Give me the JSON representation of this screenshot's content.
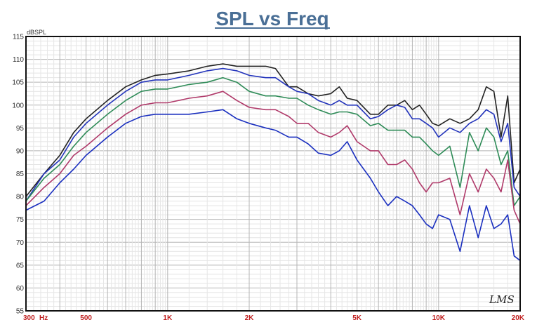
{
  "chart_data": {
    "type": "line",
    "title": "SPL vs Freq",
    "ylabel": "dBSPL",
    "x_scale": "log",
    "xlim": [
      300,
      20000
    ],
    "ylim": [
      55,
      115
    ],
    "y_ticks": [
      115,
      110,
      105,
      100,
      95,
      90,
      85,
      80,
      75,
      70,
      65,
      60,
      55
    ],
    "x_ticks": [
      {
        "value": 300,
        "label": "300"
      },
      {
        "value": 500,
        "label": "500"
      },
      {
        "value": 1000,
        "label": "1K"
      },
      {
        "value": 2000,
        "label": "2K"
      },
      {
        "value": 5000,
        "label": "5K"
      },
      {
        "value": 10000,
        "label": "10K"
      },
      {
        "value": 20000,
        "label": "20K"
      }
    ],
    "x_unit_label": "Hz",
    "grid": true,
    "logo_text": "LMS",
    "series": [
      {
        "color": "#222222",
        "points": [
          [
            300,
            80
          ],
          [
            350,
            85
          ],
          [
            400,
            89
          ],
          [
            450,
            94
          ],
          [
            500,
            97
          ],
          [
            600,
            101
          ],
          [
            700,
            104
          ],
          [
            800,
            105.5
          ],
          [
            900,
            106.5
          ],
          [
            1000,
            106.8
          ],
          [
            1200,
            107.5
          ],
          [
            1400,
            108.5
          ],
          [
            1600,
            109
          ],
          [
            1800,
            108.5
          ],
          [
            2000,
            108.5
          ],
          [
            2300,
            108.5
          ],
          [
            2500,
            108
          ],
          [
            2800,
            104
          ],
          [
            3000,
            104
          ],
          [
            3300,
            102.5
          ],
          [
            3600,
            102
          ],
          [
            4000,
            102.5
          ],
          [
            4300,
            104
          ],
          [
            4600,
            101.5
          ],
          [
            5000,
            101
          ],
          [
            5600,
            98
          ],
          [
            6000,
            98
          ],
          [
            6500,
            100
          ],
          [
            7000,
            100
          ],
          [
            7500,
            101
          ],
          [
            8000,
            99
          ],
          [
            8500,
            100
          ],
          [
            9000,
            98
          ],
          [
            9500,
            96
          ],
          [
            10000,
            95.5
          ],
          [
            11000,
            97
          ],
          [
            12000,
            96
          ],
          [
            13000,
            97
          ],
          [
            14000,
            99
          ],
          [
            15000,
            104
          ],
          [
            16000,
            103
          ],
          [
            17000,
            93
          ],
          [
            18000,
            102
          ],
          [
            19000,
            83
          ],
          [
            20000,
            86
          ]
        ]
      },
      {
        "color": "#2233bb",
        "points": [
          [
            300,
            79
          ],
          [
            350,
            85
          ],
          [
            400,
            88
          ],
          [
            450,
            93
          ],
          [
            500,
            96
          ],
          [
            600,
            100
          ],
          [
            700,
            103
          ],
          [
            800,
            105
          ],
          [
            900,
            105.5
          ],
          [
            1000,
            105.5
          ],
          [
            1200,
            106.5
          ],
          [
            1400,
            107.5
          ],
          [
            1600,
            108
          ],
          [
            1800,
            107.5
          ],
          [
            2000,
            106.5
          ],
          [
            2300,
            106
          ],
          [
            2500,
            106
          ],
          [
            2800,
            104
          ],
          [
            3000,
            103
          ],
          [
            3300,
            102.5
          ],
          [
            3600,
            101
          ],
          [
            4000,
            100
          ],
          [
            4300,
            101
          ],
          [
            4600,
            100
          ],
          [
            5000,
            100
          ],
          [
            5600,
            97
          ],
          [
            6000,
            97.5
          ],
          [
            6500,
            99
          ],
          [
            7000,
            100
          ],
          [
            7500,
            99.5
          ],
          [
            8000,
            97
          ],
          [
            8500,
            97
          ],
          [
            9000,
            96
          ],
          [
            9500,
            95
          ],
          [
            10000,
            93
          ],
          [
            11000,
            95
          ],
          [
            12000,
            94
          ],
          [
            13000,
            96
          ],
          [
            14000,
            97
          ],
          [
            15000,
            99
          ],
          [
            16000,
            98
          ],
          [
            17000,
            92
          ],
          [
            18000,
            96
          ],
          [
            19000,
            82
          ],
          [
            20000,
            80
          ]
        ]
      },
      {
        "color": "#2e8b57",
        "points": [
          [
            300,
            79
          ],
          [
            350,
            84
          ],
          [
            400,
            87
          ],
          [
            450,
            91
          ],
          [
            500,
            94
          ],
          [
            600,
            98
          ],
          [
            700,
            101
          ],
          [
            800,
            103
          ],
          [
            900,
            103.5
          ],
          [
            1000,
            103.5
          ],
          [
            1200,
            104.5
          ],
          [
            1400,
            105
          ],
          [
            1600,
            106
          ],
          [
            1800,
            105
          ],
          [
            2000,
            103
          ],
          [
            2300,
            102
          ],
          [
            2500,
            102
          ],
          [
            2800,
            101.5
          ],
          [
            3000,
            101.5
          ],
          [
            3300,
            100
          ],
          [
            3600,
            99
          ],
          [
            4000,
            98
          ],
          [
            4300,
            98.5
          ],
          [
            4600,
            98.5
          ],
          [
            5000,
            98
          ],
          [
            5600,
            95.5
          ],
          [
            6000,
            96
          ],
          [
            6500,
            94.5
          ],
          [
            7000,
            94.5
          ],
          [
            7500,
            94.5
          ],
          [
            8000,
            93
          ],
          [
            8500,
            93
          ],
          [
            9000,
            91.5
          ],
          [
            9500,
            90
          ],
          [
            10000,
            89
          ],
          [
            11000,
            91
          ],
          [
            12000,
            82
          ],
          [
            13000,
            94
          ],
          [
            14000,
            90
          ],
          [
            15000,
            95
          ],
          [
            16000,
            93
          ],
          [
            17000,
            87
          ],
          [
            18000,
            90
          ],
          [
            19000,
            78
          ],
          [
            20000,
            80
          ]
        ]
      },
      {
        "color": "#b03a6a",
        "points": [
          [
            300,
            78
          ],
          [
            350,
            82
          ],
          [
            400,
            85
          ],
          [
            450,
            89
          ],
          [
            500,
            91
          ],
          [
            600,
            95
          ],
          [
            700,
            98
          ],
          [
            800,
            100
          ],
          [
            900,
            100.5
          ],
          [
            1000,
            100.5
          ],
          [
            1200,
            101.5
          ],
          [
            1400,
            102
          ],
          [
            1600,
            103
          ],
          [
            1800,
            101
          ],
          [
            2000,
            99.5
          ],
          [
            2300,
            99
          ],
          [
            2500,
            99
          ],
          [
            2800,
            97.5
          ],
          [
            3000,
            96
          ],
          [
            3300,
            96
          ],
          [
            3600,
            94
          ],
          [
            4000,
            93
          ],
          [
            4300,
            94
          ],
          [
            4600,
            95.5
          ],
          [
            5000,
            92
          ],
          [
            5600,
            90
          ],
          [
            6000,
            90
          ],
          [
            6500,
            87
          ],
          [
            7000,
            87
          ],
          [
            7500,
            88
          ],
          [
            8000,
            86
          ],
          [
            8500,
            83
          ],
          [
            9000,
            81
          ],
          [
            9500,
            83
          ],
          [
            10000,
            83
          ],
          [
            11000,
            84
          ],
          [
            12000,
            76
          ],
          [
            13000,
            85
          ],
          [
            14000,
            81
          ],
          [
            15000,
            86
          ],
          [
            16000,
            84
          ],
          [
            17000,
            81
          ],
          [
            18000,
            88
          ],
          [
            19000,
            77
          ],
          [
            20000,
            74
          ]
        ]
      },
      {
        "color": "#1a2fbf",
        "points": [
          [
            300,
            77
          ],
          [
            350,
            79
          ],
          [
            400,
            83
          ],
          [
            450,
            86
          ],
          [
            500,
            89
          ],
          [
            600,
            93
          ],
          [
            700,
            96
          ],
          [
            800,
            97.5
          ],
          [
            900,
            98
          ],
          [
            1000,
            98
          ],
          [
            1200,
            98
          ],
          [
            1400,
            98.5
          ],
          [
            1600,
            99
          ],
          [
            1800,
            97
          ],
          [
            2000,
            96
          ],
          [
            2300,
            95
          ],
          [
            2500,
            94.5
          ],
          [
            2800,
            93
          ],
          [
            3000,
            93
          ],
          [
            3300,
            91.5
          ],
          [
            3600,
            89.5
          ],
          [
            4000,
            89
          ],
          [
            4300,
            90
          ],
          [
            4600,
            92
          ],
          [
            5000,
            88
          ],
          [
            5600,
            84
          ],
          [
            6000,
            81
          ],
          [
            6500,
            78
          ],
          [
            7000,
            80
          ],
          [
            7500,
            79
          ],
          [
            8000,
            78
          ],
          [
            8500,
            76
          ],
          [
            9000,
            74
          ],
          [
            9500,
            73
          ],
          [
            10000,
            76
          ],
          [
            11000,
            75
          ],
          [
            12000,
            68
          ],
          [
            13000,
            78
          ],
          [
            14000,
            71
          ],
          [
            15000,
            78
          ],
          [
            16000,
            73
          ],
          [
            17000,
            74
          ],
          [
            18000,
            76
          ],
          [
            19000,
            67
          ],
          [
            20000,
            66
          ]
        ]
      }
    ]
  }
}
